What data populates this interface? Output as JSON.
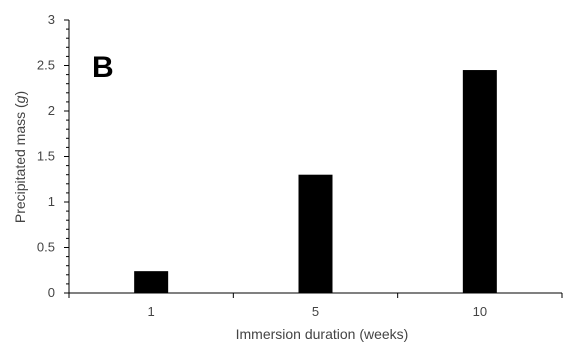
{
  "chart_data": {
    "type": "bar",
    "panel_label": "B",
    "categories": [
      "1",
      "5",
      "10"
    ],
    "values": [
      0.24,
      1.3,
      2.45
    ],
    "xlabel": "Immersion duration (weeks)",
    "ylabel_prefix": "Precipitated mass (",
    "ylabel_unit": "g",
    "ylabel_suffix": ")",
    "ylim": [
      0,
      3
    ],
    "yticks": [
      "0",
      "0.5",
      "1",
      "1.5",
      "2",
      "2.5",
      "3"
    ],
    "grid": false,
    "legend": "none",
    "bar_color": "#000000",
    "axis_color": "#000000"
  }
}
